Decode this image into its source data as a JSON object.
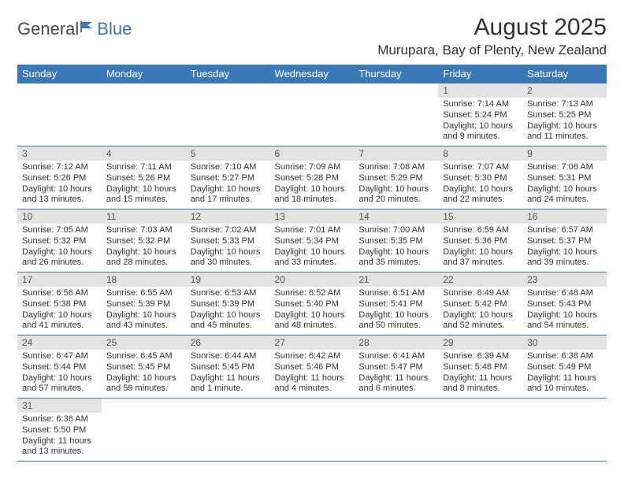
{
  "logo": {
    "part1": "General",
    "part2": "Blue"
  },
  "title": "August 2025",
  "location": "Murupara, Bay of Plenty, New Zealand",
  "colors": {
    "header_bg": "#3a78b8",
    "header_text": "#ffffff",
    "daynum_bg": "#e3e3e3",
    "rule": "#3a78b8",
    "text": "#333333"
  },
  "weekdays": [
    "Sunday",
    "Monday",
    "Tuesday",
    "Wednesday",
    "Thursday",
    "Friday",
    "Saturday"
  ],
  "weeks": [
    [
      null,
      null,
      null,
      null,
      null,
      {
        "n": "1",
        "sr": "Sunrise: 7:14 AM",
        "ss": "Sunset: 5:24 PM",
        "dl": "Daylight: 10 hours and 9 minutes."
      },
      {
        "n": "2",
        "sr": "Sunrise: 7:13 AM",
        "ss": "Sunset: 5:25 PM",
        "dl": "Daylight: 10 hours and 11 minutes."
      }
    ],
    [
      {
        "n": "3",
        "sr": "Sunrise: 7:12 AM",
        "ss": "Sunset: 5:26 PM",
        "dl": "Daylight: 10 hours and 13 minutes."
      },
      {
        "n": "4",
        "sr": "Sunrise: 7:11 AM",
        "ss": "Sunset: 5:26 PM",
        "dl": "Daylight: 10 hours and 15 minutes."
      },
      {
        "n": "5",
        "sr": "Sunrise: 7:10 AM",
        "ss": "Sunset: 5:27 PM",
        "dl": "Daylight: 10 hours and 17 minutes."
      },
      {
        "n": "6",
        "sr": "Sunrise: 7:09 AM",
        "ss": "Sunset: 5:28 PM",
        "dl": "Daylight: 10 hours and 18 minutes."
      },
      {
        "n": "7",
        "sr": "Sunrise: 7:08 AM",
        "ss": "Sunset: 5:29 PM",
        "dl": "Daylight: 10 hours and 20 minutes."
      },
      {
        "n": "8",
        "sr": "Sunrise: 7:07 AM",
        "ss": "Sunset: 5:30 PM",
        "dl": "Daylight: 10 hours and 22 minutes."
      },
      {
        "n": "9",
        "sr": "Sunrise: 7:06 AM",
        "ss": "Sunset: 5:31 PM",
        "dl": "Daylight: 10 hours and 24 minutes."
      }
    ],
    [
      {
        "n": "10",
        "sr": "Sunrise: 7:05 AM",
        "ss": "Sunset: 5:32 PM",
        "dl": "Daylight: 10 hours and 26 minutes."
      },
      {
        "n": "11",
        "sr": "Sunrise: 7:03 AM",
        "ss": "Sunset: 5:32 PM",
        "dl": "Daylight: 10 hours and 28 minutes."
      },
      {
        "n": "12",
        "sr": "Sunrise: 7:02 AM",
        "ss": "Sunset: 5:33 PM",
        "dl": "Daylight: 10 hours and 30 minutes."
      },
      {
        "n": "13",
        "sr": "Sunrise: 7:01 AM",
        "ss": "Sunset: 5:34 PM",
        "dl": "Daylight: 10 hours and 33 minutes."
      },
      {
        "n": "14",
        "sr": "Sunrise: 7:00 AM",
        "ss": "Sunset: 5:35 PM",
        "dl": "Daylight: 10 hours and 35 minutes."
      },
      {
        "n": "15",
        "sr": "Sunrise: 6:59 AM",
        "ss": "Sunset: 5:36 PM",
        "dl": "Daylight: 10 hours and 37 minutes."
      },
      {
        "n": "16",
        "sr": "Sunrise: 6:57 AM",
        "ss": "Sunset: 5:37 PM",
        "dl": "Daylight: 10 hours and 39 minutes."
      }
    ],
    [
      {
        "n": "17",
        "sr": "Sunrise: 6:56 AM",
        "ss": "Sunset: 5:38 PM",
        "dl": "Daylight: 10 hours and 41 minutes."
      },
      {
        "n": "18",
        "sr": "Sunrise: 6:55 AM",
        "ss": "Sunset: 5:39 PM",
        "dl": "Daylight: 10 hours and 43 minutes."
      },
      {
        "n": "19",
        "sr": "Sunrise: 6:53 AM",
        "ss": "Sunset: 5:39 PM",
        "dl": "Daylight: 10 hours and 45 minutes."
      },
      {
        "n": "20",
        "sr": "Sunrise: 6:52 AM",
        "ss": "Sunset: 5:40 PM",
        "dl": "Daylight: 10 hours and 48 minutes."
      },
      {
        "n": "21",
        "sr": "Sunrise: 6:51 AM",
        "ss": "Sunset: 5:41 PM",
        "dl": "Daylight: 10 hours and 50 minutes."
      },
      {
        "n": "22",
        "sr": "Sunrise: 6:49 AM",
        "ss": "Sunset: 5:42 PM",
        "dl": "Daylight: 10 hours and 52 minutes."
      },
      {
        "n": "23",
        "sr": "Sunrise: 6:48 AM",
        "ss": "Sunset: 5:43 PM",
        "dl": "Daylight: 10 hours and 54 minutes."
      }
    ],
    [
      {
        "n": "24",
        "sr": "Sunrise: 6:47 AM",
        "ss": "Sunset: 5:44 PM",
        "dl": "Daylight: 10 hours and 57 minutes."
      },
      {
        "n": "25",
        "sr": "Sunrise: 6:45 AM",
        "ss": "Sunset: 5:45 PM",
        "dl": "Daylight: 10 hours and 59 minutes."
      },
      {
        "n": "26",
        "sr": "Sunrise: 6:44 AM",
        "ss": "Sunset: 5:45 PM",
        "dl": "Daylight: 11 hours and 1 minute."
      },
      {
        "n": "27",
        "sr": "Sunrise: 6:42 AM",
        "ss": "Sunset: 5:46 PM",
        "dl": "Daylight: 11 hours and 4 minutes."
      },
      {
        "n": "28",
        "sr": "Sunrise: 6:41 AM",
        "ss": "Sunset: 5:47 PM",
        "dl": "Daylight: 11 hours and 6 minutes."
      },
      {
        "n": "29",
        "sr": "Sunrise: 6:39 AM",
        "ss": "Sunset: 5:48 PM",
        "dl": "Daylight: 11 hours and 8 minutes."
      },
      {
        "n": "30",
        "sr": "Sunrise: 6:38 AM",
        "ss": "Sunset: 5:49 PM",
        "dl": "Daylight: 11 hours and 10 minutes."
      }
    ],
    [
      {
        "n": "31",
        "sr": "Sunrise: 6:36 AM",
        "ss": "Sunset: 5:50 PM",
        "dl": "Daylight: 11 hours and 13 minutes."
      },
      null,
      null,
      null,
      null,
      null,
      null
    ]
  ]
}
